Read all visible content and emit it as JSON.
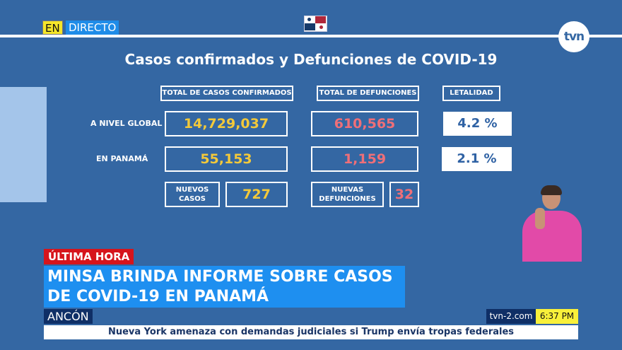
{
  "live": {
    "en": "EN",
    "directo": "DIRECTO"
  },
  "logo": "tvn",
  "title": "Casos confirmados y Defunciones de COVID-19",
  "headers": {
    "cases": "TOTAL DE CASOS CONFIRMADOS",
    "deaths": "TOTAL DE DEFUNCIONES",
    "lethality": "LETALIDAD"
  },
  "rows": [
    {
      "label": "A NIVEL GLOBAL",
      "cases": "14,729,037",
      "deaths": "610,565",
      "lethality": "4.2 %"
    },
    {
      "label": "EN PANAMÁ",
      "cases": "55,153",
      "deaths": "1,159",
      "lethality": "2.1 %"
    }
  ],
  "new": {
    "cases_label": "NUEVOS CASOS",
    "cases": "727",
    "deaths_label": "NUEVAS DEFUNCIONES",
    "deaths": "32"
  },
  "lower": {
    "tag": "ÚLTIMA HORA",
    "headline": "MINSA BRINDA INFORME SOBRE CASOS DE COVID-19 EN PANAMÁ",
    "location": "ANCÓN",
    "site": "tvn-2.com",
    "time": "6:37 PM",
    "ticker": "Nueva York amenaza con demandas judiciales si Trump envía tropas federales"
  },
  "colors": {
    "background": "#3467a3",
    "cases": "#f3c93a",
    "deaths": "#ef6f78",
    "breaking": "#d6141c",
    "headline": "#1e8ff0"
  }
}
